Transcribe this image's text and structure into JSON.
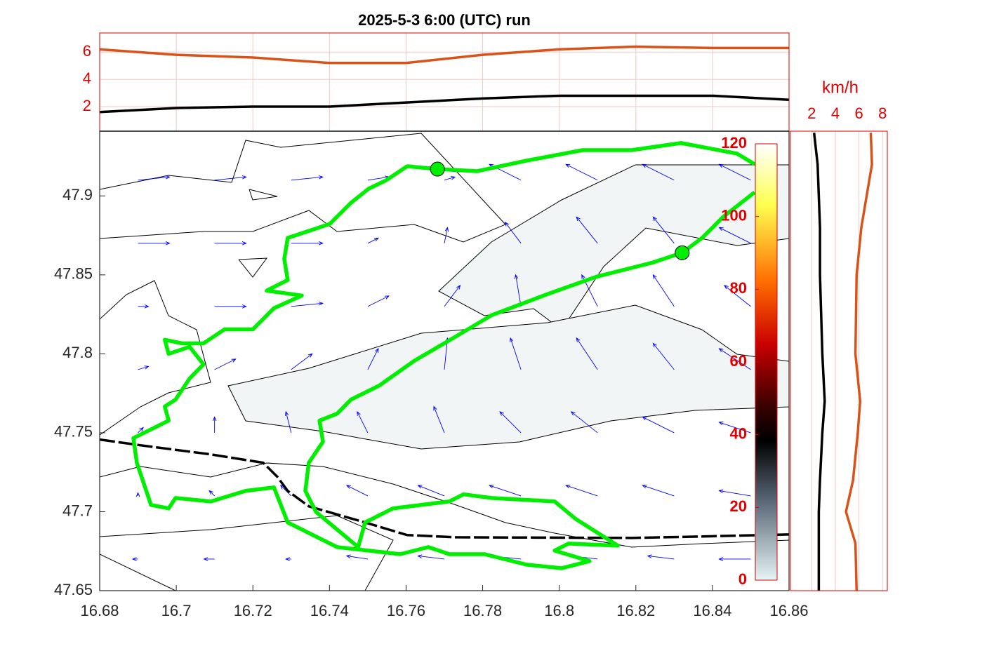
{
  "chart_data": [
    {
      "type": "line",
      "title": "2025-5-3  6:00 (UTC) run",
      "x": [
        16.68,
        16.7,
        16.72,
        16.74,
        16.76,
        16.78,
        16.8,
        16.82,
        16.84,
        16.86
      ],
      "series": [
        {
          "color": "#d95319",
          "values": [
            6.2,
            5.8,
            5.6,
            5.2,
            5.2,
            5.8,
            6.2,
            6.4,
            6.3,
            6.3
          ]
        },
        {
          "color": "#000000",
          "values": [
            1.6,
            1.9,
            2.0,
            2.0,
            2.3,
            2.6,
            2.8,
            2.8,
            2.8,
            2.5
          ]
        }
      ],
      "xlim": [
        16.68,
        16.86
      ],
      "xticks": [
        16.68,
        16.7,
        16.72,
        16.74,
        16.76,
        16.78,
        16.8,
        16.82,
        16.84,
        16.86
      ],
      "ylim": [
        0.2,
        7.4
      ],
      "yticks": [
        2,
        4,
        6
      ],
      "grid": true
    },
    {
      "type": "map",
      "xlim": [
        16.68,
        16.86
      ],
      "xticks": [
        16.68,
        16.7,
        16.72,
        16.74,
        16.76,
        16.78,
        16.8,
        16.82,
        16.84,
        16.86
      ],
      "ylim": [
        47.65,
        47.941
      ],
      "yticks": [
        47.65,
        47.7,
        47.75,
        47.8,
        47.85,
        47.9
      ],
      "wind": {
        "color": "#0000ff",
        "x": [
          16.69,
          16.71,
          16.73,
          16.75,
          16.77,
          16.79,
          16.81,
          16.83,
          16.85
        ],
        "y": [
          47.67,
          47.71,
          47.75,
          47.79,
          47.83,
          47.87,
          47.91
        ],
        "u": [
          [
            -0.5,
            -1,
            -0.5,
            -2,
            -2.5,
            -3,
            -2.5,
            -2.5,
            -3
          ],
          [
            0,
            -0.5,
            -1,
            -2,
            -2.5,
            -3,
            -3,
            -3,
            -3
          ],
          [
            0.5,
            0,
            -0.5,
            -1,
            -1,
            -2,
            -2.5,
            -3,
            -3
          ],
          [
            1,
            2,
            2,
            1,
            0.3,
            -1,
            -2,
            -2,
            -3
          ],
          [
            1,
            3,
            3,
            2,
            1.5,
            -0.5,
            -1.5,
            -2,
            -2.5
          ],
          [
            3,
            3,
            3,
            1,
            0.3,
            -1.5,
            -2,
            -2,
            -3
          ],
          [
            3,
            3,
            3,
            2,
            1,
            -3,
            -3,
            -3,
            -3
          ]
        ],
        "v": [
          [
            0,
            0,
            0,
            0.3,
            0.3,
            0.3,
            0.3,
            0.3,
            0
          ],
          [
            0.3,
            0.5,
            1,
            1,
            1,
            1,
            1,
            1,
            0.5
          ],
          [
            0.5,
            1.5,
            2,
            2,
            2.5,
            2,
            2,
            1.5,
            1
          ],
          [
            0.3,
            1,
            1.5,
            2,
            3,
            3,
            3,
            2.5,
            2
          ],
          [
            0,
            0,
            0.3,
            1,
            2,
            3,
            3,
            3,
            2
          ],
          [
            0,
            0,
            0,
            0.5,
            1.5,
            2,
            2.5,
            2.5,
            1.5
          ],
          [
            0.3,
            0.3,
            0.3,
            0.3,
            0.3,
            1.5,
            1.5,
            1.5,
            1.5
          ]
        ]
      },
      "track": {
        "color": "#00ee00",
        "lon": [
          16.851,
          16.8464,
          16.8318,
          16.8189,
          16.8061,
          16.7914,
          16.7786,
          16.7682,
          16.7603,
          16.7548,
          16.7502,
          16.7456,
          16.7401,
          16.7346,
          16.7291,
          16.7282,
          16.7291,
          16.7236,
          16.7328,
          16.7255,
          16.72,
          16.7126,
          16.7071,
          16.7016,
          16.697,
          16.698,
          16.7035,
          16.7071,
          16.7035,
          16.6998,
          16.697,
          16.698,
          16.6943,
          16.6888,
          16.6897,
          16.6934,
          16.698,
          16.6998,
          16.709,
          16.7181,
          16.7255,
          16.7291,
          16.742,
          16.7585,
          16.7658,
          16.7713,
          16.7805,
          16.7914,
          16.8006,
          16.8079,
          16.7988,
          16.8024,
          16.8153,
          16.8043,
          16.7988,
          16.7823,
          16.775,
          16.7713,
          16.7566,
          16.7493,
          16.7475,
          16.7365,
          16.7337,
          16.7346,
          16.7383,
          16.7374,
          16.742,
          16.7456,
          16.753,
          16.7621,
          16.7731,
          16.7823,
          16.7969,
          16.8098,
          16.8244,
          16.8321,
          16.8373,
          16.8428,
          16.851
        ],
        "lat": [
          47.9201,
          47.9268,
          47.9335,
          47.929,
          47.929,
          47.9223,
          47.9157,
          47.917,
          47.9188,
          47.9099,
          47.9045,
          47.8956,
          47.8823,
          47.8778,
          47.8734,
          47.86,
          47.8467,
          47.84,
          47.8369,
          47.8289,
          47.8155,
          47.8155,
          47.8066,
          47.8066,
          47.8089,
          47.8,
          47.8044,
          47.7933,
          47.7844,
          47.771,
          47.7666,
          47.7577,
          47.7532,
          47.7466,
          47.731,
          47.7043,
          47.7021,
          47.7087,
          47.7065,
          47.7132,
          47.7154,
          47.6932,
          47.6776,
          47.6731,
          47.6776,
          47.6731,
          47.6731,
          47.6665,
          47.6642,
          47.6687,
          47.6754,
          47.6798,
          47.6785,
          47.6954,
          47.7065,
          47.7087,
          47.711,
          47.7065,
          47.7021,
          47.6932,
          47.6776,
          47.6998,
          47.7132,
          47.731,
          47.7443,
          47.7577,
          47.7621,
          47.771,
          47.7799,
          47.7955,
          47.8111,
          47.8244,
          47.8378,
          47.8489,
          47.8578,
          47.864,
          47.8734,
          47.8867,
          47.9023
        ]
      },
      "markers": {
        "color": "#00ee00",
        "lon": [
          16.7682,
          16.8321
        ],
        "lat": [
          47.917,
          47.864
        ]
      },
      "boundary": {
        "color": "#000000",
        "lon": [
          16.68,
          16.6906,
          16.709,
          16.7227,
          16.7264,
          16.7291,
          16.7346,
          16.7493,
          16.7603,
          16.7731,
          16.8189,
          16.8373,
          16.86
        ],
        "lat": [
          47.7457,
          47.7421,
          47.7363,
          47.731,
          47.7221,
          47.7132,
          47.7034,
          47.6932,
          47.6852,
          47.6838,
          47.6834,
          47.6843,
          47.6856
        ]
      },
      "colorbar": {
        "clim": [
          0,
          120
        ],
        "ticks": [
          0,
          20,
          40,
          60,
          80,
          100,
          120
        ]
      }
    },
    {
      "type": "profile",
      "xlabel": "km/h",
      "y": [
        47.65,
        47.68,
        47.7,
        47.72,
        47.75,
        47.77,
        47.8,
        47.85,
        47.88,
        47.92,
        47.94
      ],
      "series": [
        {
          "color": "#d95319",
          "values": [
            5.8,
            5.7,
            4.9,
            5.5,
            5.9,
            6.1,
            5.7,
            5.8,
            6.2,
            7.1,
            7.0
          ]
        },
        {
          "color": "#000000",
          "values": [
            2.6,
            2.6,
            2.6,
            2.7,
            2.9,
            3.1,
            2.9,
            2.7,
            2.7,
            2.5,
            2.2
          ]
        }
      ],
      "xlim": [
        0.2,
        8.4
      ],
      "xticks": [
        2,
        4,
        6,
        8
      ],
      "ylim": [
        47.65,
        47.941
      ],
      "grid": true
    }
  ]
}
